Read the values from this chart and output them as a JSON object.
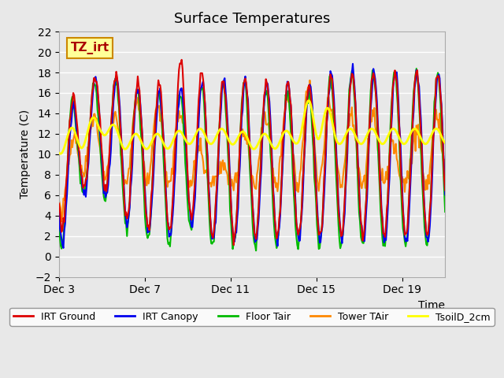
{
  "title": "Surface Temperatures",
  "xlabel": "Time",
  "ylabel": "Temperature (C)",
  "ylim": [
    -2,
    22
  ],
  "yticks": [
    -2,
    0,
    2,
    4,
    6,
    8,
    10,
    12,
    14,
    16,
    18,
    20,
    22
  ],
  "xlim_days": [
    3,
    21
  ],
  "xtick_days": [
    3,
    7,
    11,
    15,
    19
  ],
  "xtick_labels": [
    "Dec 3",
    "Dec 7",
    "Dec 11",
    "Dec 15",
    "Dec 19"
  ],
  "annotation_text": "TZ_irt",
  "annotation_box_color": "#FFFF99",
  "annotation_border_color": "#CC8800",
  "annotation_text_color": "#AA0000",
  "bg_color": "#E8E8E8",
  "plot_bg_color": "#E8E8E8",
  "grid_color": "#FFFFFF",
  "lines": {
    "IRT Ground": {
      "color": "#DD0000",
      "lw": 1.5,
      "zorder": 5
    },
    "IRT Canopy": {
      "color": "#0000EE",
      "lw": 1.5,
      "zorder": 4
    },
    "Floor Tair": {
      "color": "#00BB00",
      "lw": 1.5,
      "zorder": 3
    },
    "Tower TAir": {
      "color": "#FF8800",
      "lw": 1.5,
      "zorder": 2
    },
    "TsoilD_2cm": {
      "color": "#FFFF00",
      "lw": 2.0,
      "zorder": 6
    }
  },
  "legend_colors": {
    "IRT Ground": "#DD0000",
    "IRT Canopy": "#0000EE",
    "Floor Tair": "#00BB00",
    "Tower TAir": "#FF8800",
    "TsoilD_2cm": "#FFFF00"
  },
  "irt_ground_peaks": [
    16,
    15,
    19,
    17,
    17,
    17,
    20,
    17,
    17.5,
    17.5,
    17,
    17,
    17,
    18,
    18,
    18,
    18,
    18,
    18
  ],
  "irt_ground_troughs": [
    2,
    7,
    7,
    4,
    3,
    2,
    4,
    2,
    2,
    2,
    2,
    2,
    2,
    2,
    2,
    2,
    2,
    2,
    2
  ],
  "irt_canopy_peaks": [
    15,
    14.5,
    18.5,
    17,
    16.5,
    16,
    16.5,
    17,
    17.5,
    17,
    17,
    17,
    17,
    18.5,
    18.5,
    18,
    18,
    18,
    18
  ],
  "irt_canopy_troughs": [
    0,
    6,
    6,
    3.5,
    2.5,
    1.5,
    3.5,
    1.5,
    1.5,
    1.5,
    1.5,
    1.5,
    1.5,
    1.5,
    1.5,
    1.5,
    1.5,
    1.5,
    1.5
  ],
  "floor_tair_peaks": [
    16,
    15,
    18,
    17,
    16,
    16,
    16,
    17,
    17,
    17,
    16,
    16,
    16,
    18,
    18,
    18,
    18,
    18,
    18
  ],
  "floor_tair_troughs": [
    0,
    6,
    6,
    3,
    2,
    1,
    3,
    1,
    1,
    1,
    1,
    1,
    1,
    1,
    1,
    1,
    1,
    1,
    1
  ],
  "tower_tair_peaks": [
    9,
    13,
    14,
    14,
    16,
    14,
    14,
    8,
    9,
    14,
    14,
    16,
    17,
    14,
    14,
    14,
    9,
    14,
    14
  ],
  "tower_tair_troughs": [
    4,
    8,
    8,
    7,
    7,
    7,
    7,
    7,
    7,
    7,
    7,
    7,
    7,
    7,
    7,
    7,
    7,
    7,
    7
  ],
  "tsoil_peaks": [
    12,
    13,
    14,
    12,
    12,
    12,
    12.5,
    12.5,
    12.5,
    12,
    12,
    12.5,
    17,
    12.5,
    12.5,
    12.5,
    12.5,
    12.5,
    12.5
  ],
  "tsoil_troughs": [
    10,
    10.5,
    12,
    10.5,
    10.5,
    10.5,
    11,
    11,
    11,
    10.5,
    10.5,
    11,
    11.5,
    11,
    11,
    11,
    11,
    11,
    11
  ]
}
